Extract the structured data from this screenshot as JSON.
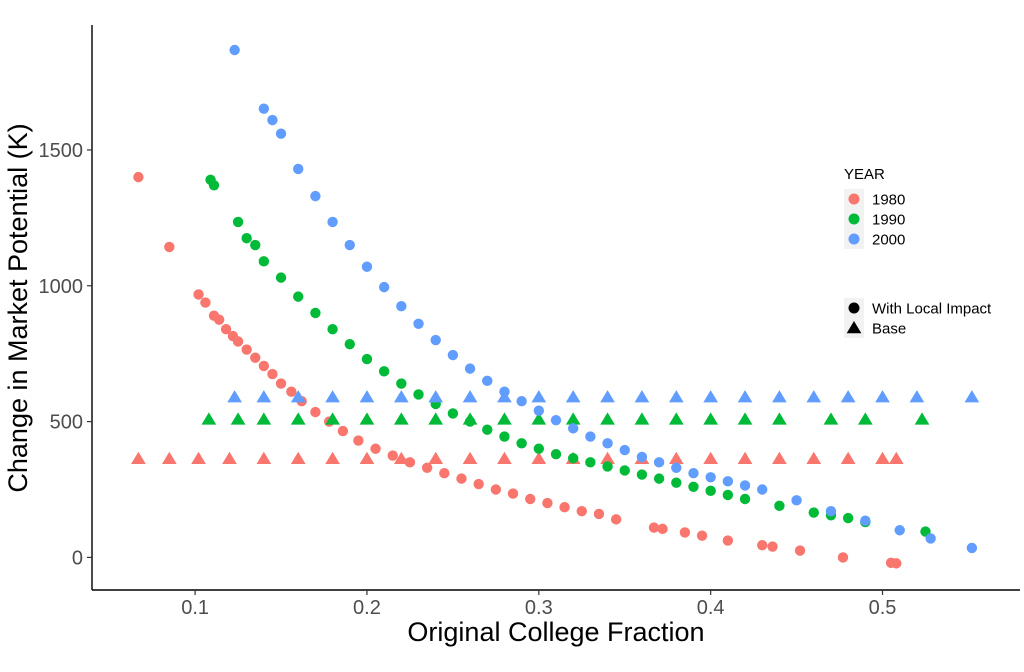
{
  "chart_data": {
    "type": "scatter",
    "xlabel": "Original College Fraction",
    "ylabel": "Change in Market Potential (K)",
    "xlim": [
      0.04,
      0.58
    ],
    "ylim": [
      -120,
      1960
    ],
    "x_ticks": [
      0.1,
      0.2,
      0.3,
      0.4,
      0.5
    ],
    "x_tick_labels": [
      "0.1",
      "0.2",
      "0.3",
      "0.4",
      "0.5"
    ],
    "y_ticks": [
      0,
      500,
      1000,
      1500
    ],
    "y_tick_labels": [
      "0",
      "500",
      "1000",
      "1500"
    ],
    "grid": false,
    "legend_position": "right",
    "color_legend": {
      "title": "YEAR",
      "entries": [
        {
          "label": "1980",
          "color": "#F8766D"
        },
        {
          "label": "1990",
          "color": "#00BA38"
        },
        {
          "label": "2000",
          "color": "#619CFF"
        }
      ]
    },
    "shape_legend": {
      "entries": [
        {
          "label": "With Local Impact",
          "shape": "circle"
        },
        {
          "label": "Base",
          "shape": "triangle"
        }
      ]
    },
    "series": [
      {
        "year": "1980",
        "shape": "circle",
        "color": "#F8766D",
        "x": [
          0.067,
          0.085,
          0.102,
          0.106,
          0.111,
          0.114,
          0.118,
          0.122,
          0.125,
          0.13,
          0.135,
          0.14,
          0.145,
          0.15,
          0.156,
          0.162,
          0.17,
          0.178,
          0.186,
          0.195,
          0.205,
          0.215,
          0.225,
          0.235,
          0.245,
          0.255,
          0.265,
          0.275,
          0.285,
          0.295,
          0.305,
          0.315,
          0.325,
          0.335,
          0.345,
          0.367,
          0.372,
          0.385,
          0.395,
          0.41,
          0.43,
          0.436,
          0.452,
          0.477,
          0.505,
          0.508
        ],
        "y": [
          1400,
          1143,
          968,
          938,
          890,
          875,
          840,
          815,
          795,
          765,
          735,
          705,
          675,
          640,
          610,
          575,
          535,
          500,
          465,
          430,
          400,
          375,
          350,
          330,
          310,
          290,
          270,
          250,
          235,
          215,
          200,
          185,
          170,
          160,
          140,
          110,
          105,
          92,
          80,
          62,
          45,
          40,
          25,
          0,
          -20,
          -22
        ]
      },
      {
        "year": "1980",
        "shape": "triangle",
        "color": "#F8766D",
        "x": [
          0.067,
          0.085,
          0.102,
          0.12,
          0.14,
          0.16,
          0.18,
          0.2,
          0.22,
          0.24,
          0.26,
          0.28,
          0.3,
          0.32,
          0.34,
          0.36,
          0.38,
          0.4,
          0.42,
          0.44,
          0.46,
          0.48,
          0.5,
          0.508
        ],
        "y": [
          363,
          363,
          363,
          363,
          363,
          363,
          363,
          363,
          363,
          363,
          363,
          363,
          363,
          363,
          363,
          363,
          363,
          363,
          363,
          363,
          363,
          363,
          363,
          363
        ]
      },
      {
        "year": "1990",
        "shape": "circle",
        "color": "#00BA38",
        "x": [
          0.109,
          0.111,
          0.125,
          0.13,
          0.135,
          0.14,
          0.15,
          0.16,
          0.17,
          0.18,
          0.19,
          0.2,
          0.21,
          0.22,
          0.23,
          0.24,
          0.25,
          0.26,
          0.27,
          0.28,
          0.29,
          0.3,
          0.31,
          0.32,
          0.33,
          0.34,
          0.35,
          0.36,
          0.37,
          0.38,
          0.39,
          0.4,
          0.41,
          0.42,
          0.44,
          0.46,
          0.47,
          0.48,
          0.49,
          0.525
        ],
        "y": [
          1390,
          1370,
          1235,
          1175,
          1150,
          1090,
          1030,
          960,
          900,
          840,
          785,
          730,
          685,
          640,
          600,
          565,
          530,
          500,
          470,
          445,
          420,
          400,
          380,
          365,
          350,
          335,
          320,
          305,
          290,
          275,
          260,
          245,
          230,
          215,
          190,
          165,
          155,
          145,
          130,
          95
        ]
      },
      {
        "year": "1990",
        "shape": "triangle",
        "color": "#00BA38",
        "x": [
          0.108,
          0.125,
          0.14,
          0.16,
          0.18,
          0.2,
          0.22,
          0.24,
          0.26,
          0.28,
          0.3,
          0.32,
          0.34,
          0.36,
          0.38,
          0.4,
          0.42,
          0.44,
          0.47,
          0.49,
          0.523
        ],
        "y": [
          508,
          508,
          508,
          508,
          508,
          508,
          508,
          508,
          508,
          508,
          508,
          508,
          508,
          508,
          508,
          508,
          508,
          508,
          508,
          508,
          508
        ]
      },
      {
        "year": "2000",
        "shape": "circle",
        "color": "#619CFF",
        "x": [
          0.123,
          0.14,
          0.145,
          0.15,
          0.16,
          0.17,
          0.18,
          0.19,
          0.2,
          0.21,
          0.22,
          0.23,
          0.24,
          0.25,
          0.26,
          0.27,
          0.28,
          0.29,
          0.3,
          0.31,
          0.32,
          0.33,
          0.34,
          0.35,
          0.36,
          0.37,
          0.38,
          0.39,
          0.4,
          0.41,
          0.42,
          0.43,
          0.45,
          0.47,
          0.49,
          0.51,
          0.528,
          0.552
        ],
        "y": [
          1868,
          1652,
          1610,
          1560,
          1430,
          1330,
          1235,
          1150,
          1070,
          995,
          925,
          860,
          800,
          745,
          695,
          650,
          610,
          575,
          540,
          505,
          475,
          445,
          420,
          395,
          370,
          350,
          330,
          310,
          295,
          280,
          265,
          250,
          210,
          170,
          135,
          100,
          70,
          35
        ]
      },
      {
        "year": "2000",
        "shape": "triangle",
        "color": "#619CFF",
        "x": [
          0.123,
          0.14,
          0.16,
          0.18,
          0.2,
          0.22,
          0.24,
          0.26,
          0.28,
          0.3,
          0.32,
          0.34,
          0.36,
          0.38,
          0.4,
          0.42,
          0.44,
          0.46,
          0.48,
          0.5,
          0.52,
          0.552
        ],
        "y": [
          590,
          590,
          590,
          590,
          590,
          590,
          590,
          590,
          590,
          590,
          590,
          590,
          590,
          590,
          590,
          590,
          590,
          590,
          590,
          590,
          590,
          590
        ]
      }
    ]
  }
}
